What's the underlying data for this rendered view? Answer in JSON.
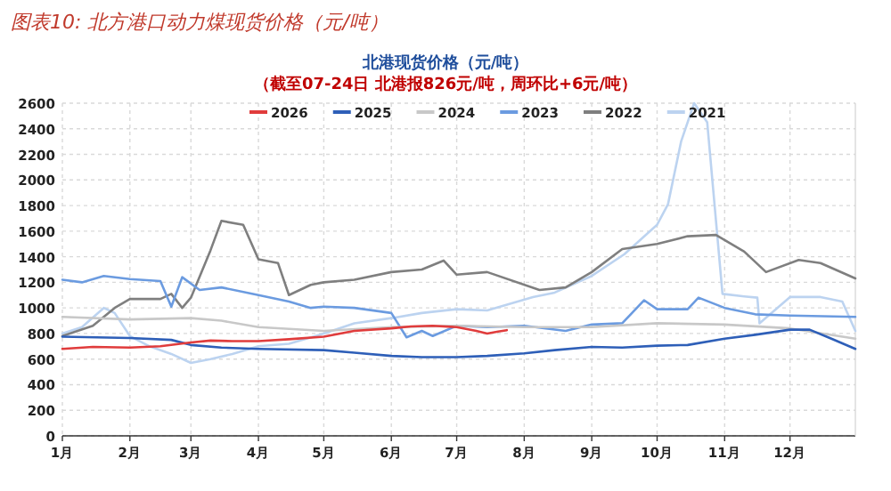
{
  "chart_data": {
    "type": "line",
    "title": "图表10: 北方港口动力煤现货价格（元/吨）",
    "subtitle": "北港现货价格（元/吨）",
    "annotations": [
      "（截至07-24日 北港报826元/吨，周环比+6元/吨）"
    ],
    "xlim": [
      "--01-01",
      "--12-31"
    ],
    "xticks": [
      {
        "value": "--01-01",
        "label": "1月"
      },
      {
        "value": "--02-01",
        "label": "2月"
      },
      {
        "value": "--03-01",
        "label": "3月"
      },
      {
        "value": "--04-01",
        "label": "4月"
      },
      {
        "value": "--05-01",
        "label": "5月"
      },
      {
        "value": "--06-01",
        "label": "6月"
      },
      {
        "value": "--07-01",
        "label": "7月"
      },
      {
        "value": "--08-01",
        "label": "8月"
      },
      {
        "value": "--09-01",
        "label": "9月"
      },
      {
        "value": "--10-01",
        "label": "10月"
      },
      {
        "value": "--11-01",
        "label": "11月"
      },
      {
        "value": "--12-01",
        "label": "12月"
      }
    ],
    "ylim": [
      0,
      2600
    ],
    "yticks": [
      0,
      200,
      400,
      600,
      800,
      1000,
      1200,
      1400,
      1600,
      1800,
      2000,
      2200,
      2400,
      2600
    ],
    "grid": true,
    "legend": "top",
    "series": [
      {
        "name": "2026",
        "color": "#e03c3c",
        "x": [
          "--01-01",
          "--01-15",
          "--02-01",
          "--02-15",
          "--03-01",
          "--03-10",
          "--03-20",
          "--04-01",
          "--04-15",
          "--05-01",
          "--05-15",
          "--06-01",
          "--06-10",
          "--06-20",
          "--07-01",
          "--07-10",
          "--07-15",
          "--07-20",
          "--07-24"
        ],
        "values": [
          680,
          695,
          690,
          700,
          730,
          745,
          740,
          740,
          755,
          775,
          820,
          840,
          855,
          860,
          850,
          820,
          800,
          815,
          826
        ]
      },
      {
        "name": "2025",
        "color": "#2e5fb8",
        "x": [
          "--01-01",
          "--02-01",
          "--02-20",
          "--03-01",
          "--03-15",
          "--04-01",
          "--05-01",
          "--05-15",
          "--06-01",
          "--06-15",
          "--07-01",
          "--07-15",
          "--08-01",
          "--08-15",
          "--09-01",
          "--09-15",
          "--10-01",
          "--10-15",
          "--11-01",
          "--11-15",
          "--12-01",
          "--12-10",
          "--12-20",
          "--12-31"
        ],
        "values": [
          775,
          765,
          750,
          710,
          690,
          680,
          670,
          650,
          625,
          615,
          615,
          625,
          645,
          670,
          695,
          690,
          705,
          710,
          760,
          790,
          830,
          830,
          760,
          680
        ]
      },
      {
        "name": "2024",
        "color": "#c8c8c8",
        "x": [
          "--01-01",
          "--02-01",
          "--03-01",
          "--03-15",
          "--04-01",
          "--05-01",
          "--06-01",
          "--07-01",
          "--08-01",
          "--09-01",
          "--10-01",
          "--11-01",
          "--12-01",
          "--12-31"
        ],
        "values": [
          930,
          910,
          920,
          900,
          850,
          820,
          850,
          860,
          850,
          850,
          880,
          870,
          840,
          760
        ]
      },
      {
        "name": "2023",
        "color": "#6b9be0",
        "x": [
          "--01-01",
          "--01-10",
          "--01-20",
          "--02-01",
          "--02-15",
          "--02-20",
          "--02-25",
          "--03-05",
          "--03-15",
          "--04-01",
          "--04-15",
          "--04-25",
          "--05-01",
          "--05-15",
          "--06-01",
          "--06-08",
          "--06-15",
          "--06-20",
          "--07-01",
          "--07-15",
          "--08-01",
          "--08-20",
          "--09-01",
          "--09-15",
          "--09-25",
          "--10-01",
          "--10-15",
          "--10-20",
          "--11-01",
          "--11-15",
          "--12-01",
          "--12-31"
        ],
        "values": [
          1220,
          1200,
          1250,
          1225,
          1210,
          1010,
          1240,
          1140,
          1160,
          1100,
          1050,
          1000,
          1010,
          1000,
          960,
          770,
          820,
          780,
          860,
          850,
          860,
          820,
          870,
          880,
          1060,
          990,
          990,
          1080,
          1000,
          950,
          940,
          930
        ]
      },
      {
        "name": "2022",
        "color": "#7f7f7f",
        "x": [
          "--01-01",
          "--01-15",
          "--01-25",
          "--02-01",
          "--02-15",
          "--02-20",
          "--02-25",
          "--03-01",
          "--03-10",
          "--03-15",
          "--03-25",
          "--04-01",
          "--04-10",
          "--04-15",
          "--04-25",
          "--05-01",
          "--05-15",
          "--06-01",
          "--06-15",
          "--06-25",
          "--07-01",
          "--07-15",
          "--08-08",
          "--08-20",
          "--09-01",
          "--09-15",
          "--10-01",
          "--10-15",
          "--10-28",
          "--11-10",
          "--11-20",
          "--12-05",
          "--12-15",
          "--12-31"
        ],
        "values": [
          780,
          860,
          1000,
          1070,
          1070,
          1110,
          1000,
          1080,
          1450,
          1680,
          1650,
          1380,
          1350,
          1100,
          1180,
          1200,
          1220,
          1280,
          1300,
          1370,
          1260,
          1280,
          1140,
          1160,
          1280,
          1460,
          1500,
          1560,
          1570,
          1440,
          1280,
          1375,
          1350,
          1230
        ]
      },
      {
        "name": "2021",
        "color": "#bcd3f0",
        "x": [
          "--01-01",
          "--01-10",
          "--01-20",
          "--01-25",
          "--02-01",
          "--02-10",
          "--02-20",
          "--03-01",
          "--03-10",
          "--03-20",
          "--04-01",
          "--04-15",
          "--05-01",
          "--05-15",
          "--06-01",
          "--06-15",
          "--07-01",
          "--07-15",
          "--08-05",
          "--08-15",
          "--09-01",
          "--09-16",
          "--10-01",
          "--10-06",
          "--10-12",
          "--10-18",
          "--10-24",
          "--10-31",
          "--11-10",
          "--11-16",
          "--11-17",
          "--12-01",
          "--12-15",
          "--12-25",
          "--12-31"
        ],
        "values": [
          800,
          850,
          1000,
          960,
          780,
          700,
          640,
          570,
          600,
          640,
          700,
          720,
          800,
          880,
          920,
          960,
          990,
          980,
          1085,
          1120,
          1250,
          1420,
          1650,
          1810,
          2300,
          2600,
          2450,
          1110,
          1090,
          1080,
          880,
          1085,
          1085,
          1050,
          820
        ]
      }
    ]
  }
}
